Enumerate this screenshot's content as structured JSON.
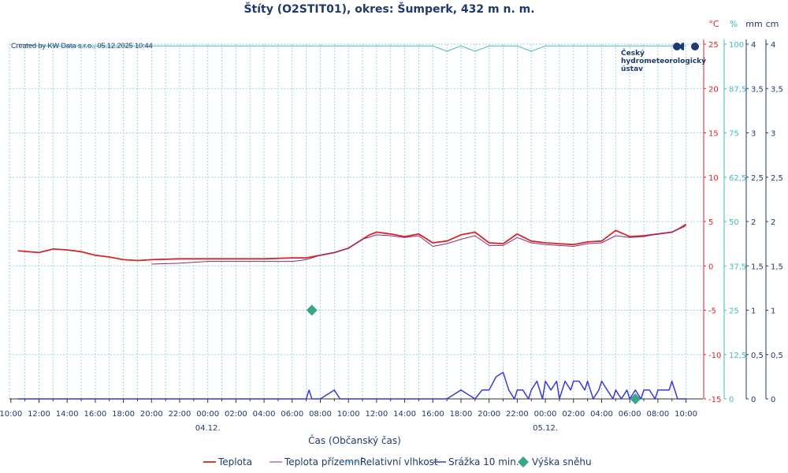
{
  "chart_data": {
    "type": "line",
    "title": "Štíty (O2STIT01), okres: Šumperk, 432 m n. m.",
    "credit": "Created by KW Data s.r.o., 05.12.2025 10:44",
    "organization": [
      "Český",
      "hydrometeorologický",
      "ústav"
    ],
    "xlabel": "Čas (Občanský čas)",
    "x_ticks": [
      "10:00",
      "12:00",
      "14:00",
      "16:00",
      "18:00",
      "20:00",
      "22:00",
      "00:00",
      "02:00",
      "04:00",
      "06:00",
      "08:00",
      "10:00",
      "12:00",
      "14:00",
      "16:00",
      "18:00",
      "20:00",
      "22:00",
      "00:00",
      "02:00",
      "04:00",
      "06:00",
      "08:00",
      "10:00"
    ],
    "date_labels": [
      {
        "label": "04.12.",
        "tick_index": 7
      },
      {
        "label": "05.12.",
        "tick_index": 19
      }
    ],
    "axes": {
      "temperature": {
        "unit": "°C",
        "range": [
          -15,
          25
        ],
        "ticks": [
          "25",
          "20",
          "15",
          "10",
          "5",
          "0",
          "-5",
          "-10",
          "-15"
        ],
        "color": "#d62728"
      },
      "humidity": {
        "unit": "%",
        "range": [
          0,
          100
        ],
        "ticks": [
          "100",
          "87,5",
          "75",
          "62,5",
          "50",
          "37,5",
          "25",
          "12,5",
          "0"
        ],
        "color": "#46b8c6"
      },
      "precip": {
        "unit": "mm",
        "range": [
          0,
          4
        ],
        "ticks": [
          "4",
          "3,5",
          "3",
          "2,5",
          "2",
          "1,5",
          "1",
          "0,5",
          "0"
        ],
        "color": "#1f3a6e"
      },
      "snow": {
        "unit": "cm",
        "range": [
          0,
          4
        ],
        "ticks": [
          "4",
          "3,5",
          "3",
          "2,5",
          "2",
          "1,5",
          "1",
          "0,5",
          "0"
        ],
        "color": "#1f3a6e"
      }
    },
    "grid": true,
    "legend_position": "bottom",
    "series": [
      {
        "name": "Teplota",
        "axis": "temperature",
        "color": "#d62728",
        "x": [
          10.5,
          12,
          13,
          14,
          15,
          16,
          17,
          18,
          19,
          20,
          22,
          24,
          26,
          28,
          30,
          31,
          32,
          33,
          34,
          35,
          35.5,
          36,
          37,
          38,
          39,
          40,
          41,
          42,
          43,
          44,
          45,
          46,
          47,
          48,
          49,
          50,
          51,
          52,
          53,
          54,
          55,
          56,
          57,
          57.5,
          58
        ],
        "y": [
          1.7,
          1.5,
          1.9,
          1.8,
          1.6,
          1.2,
          1.0,
          0.7,
          0.6,
          0.7,
          0.8,
          0.8,
          0.8,
          0.8,
          0.9,
          0.9,
          1.2,
          1.5,
          2.0,
          3.0,
          3.5,
          3.8,
          3.6,
          3.3,
          3.6,
          2.6,
          2.8,
          3.5,
          3.8,
          2.6,
          2.5,
          3.6,
          2.8,
          2.6,
          2.5,
          2.4,
          2.7,
          2.8,
          4.0,
          3.3,
          3.4,
          3.6,
          3.8,
          4.2,
          4.7
        ]
      },
      {
        "name": "Teplota přízemní",
        "axis": "temperature",
        "color": "#8e2a7a",
        "x": [
          20,
          22,
          24,
          26,
          28,
          30,
          31,
          32,
          33,
          34,
          35,
          36,
          37,
          38,
          39,
          40,
          41,
          42,
          43,
          44,
          45,
          46,
          47,
          48,
          49,
          50,
          51,
          52,
          53,
          54,
          55,
          56,
          57,
          58
        ],
        "y": [
          0.2,
          0.3,
          0.5,
          0.5,
          0.5,
          0.5,
          0.7,
          1.2,
          1.5,
          2.0,
          3.0,
          3.5,
          3.4,
          3.2,
          3.4,
          2.2,
          2.5,
          3.0,
          3.4,
          2.3,
          2.3,
          3.2,
          2.6,
          2.4,
          2.3,
          2.2,
          2.5,
          2.6,
          3.4,
          3.2,
          3.3,
          3.6,
          3.8,
          4.5
        ]
      },
      {
        "name": "Relativní vlhkost",
        "axis": "humidity",
        "color": "#46b8c6",
        "x": [
          10.5,
          12,
          20,
          30,
          40,
          41,
          42,
          43,
          44,
          45,
          46,
          47,
          48,
          50,
          56,
          58
        ],
        "y": [
          100,
          99.5,
          99.5,
          99.5,
          99.5,
          98,
          99.5,
          98,
          99.5,
          99.5,
          99.5,
          98,
          99.5,
          99.5,
          99.5,
          99.5
        ]
      },
      {
        "name": "Srážka 10 min.",
        "axis": "precip",
        "color": "#3a3ad6",
        "x": [
          10.5,
          12,
          14,
          16,
          18,
          20,
          22,
          24,
          26,
          28,
          30,
          31,
          31.2,
          31.4,
          32,
          33,
          33.4,
          33.8,
          34,
          35,
          36,
          37,
          38,
          39,
          40,
          41,
          42,
          43,
          43.5,
          44,
          44.5,
          45,
          45.4,
          45.8,
          46,
          46.4,
          46.8,
          47,
          47.4,
          47.8,
          48,
          48.4,
          48.8,
          49,
          49.4,
          49.8,
          50,
          50.4,
          50.8,
          51,
          51.4,
          51.8,
          52,
          52.4,
          52.8,
          53,
          53.4,
          53.8,
          54,
          54.4,
          54.8,
          55,
          55.4,
          55.8,
          56,
          56.4,
          56.8,
          57,
          57.4,
          57.8,
          58
        ],
        "y": [
          0,
          0,
          0,
          0,
          0,
          0,
          0,
          0,
          0,
          0,
          0,
          0,
          0.1,
          0,
          0,
          0.1,
          0,
          0,
          0,
          0,
          0,
          0,
          0,
          0,
          0,
          0,
          0.1,
          0,
          0.1,
          0.1,
          0.25,
          0.3,
          0.1,
          0,
          0.1,
          0.1,
          0,
          0.1,
          0.2,
          0,
          0.2,
          0.1,
          0.2,
          0,
          0.2,
          0.1,
          0.2,
          0.2,
          0.1,
          0.2,
          0,
          0.1,
          0.2,
          0.1,
          0,
          0.1,
          0,
          0.1,
          0,
          0.1,
          0,
          0.1,
          0.1,
          0,
          0.1,
          0.1,
          0.1,
          0.2,
          0,
          0,
          0
        ]
      },
      {
        "name": "Výška sněhu",
        "axis": "snow",
        "color": "#3aa48a",
        "marker": "diamond",
        "x": [
          31.4,
          54.4
        ],
        "y": [
          1,
          0
        ]
      }
    ]
  }
}
